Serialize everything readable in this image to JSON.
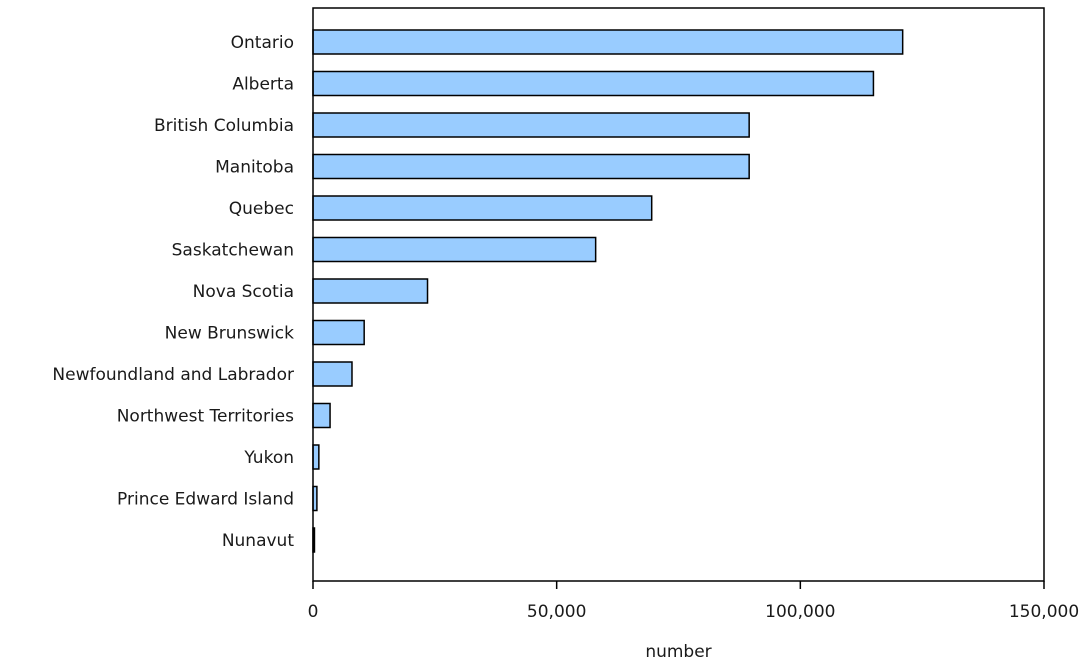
{
  "chart_data": {
    "type": "bar",
    "orientation": "horizontal",
    "categories": [
      "Ontario",
      "Alberta",
      "British Columbia",
      "Manitoba",
      "Quebec",
      "Saskatchewan",
      "Nova Scotia",
      "New Brunswick",
      "Newfoundland and Labrador",
      "Northwest Territories",
      "Yukon",
      "Prince Edward Island",
      "Nunavut"
    ],
    "values": [
      121000,
      115000,
      89500,
      89500,
      69500,
      58000,
      23500,
      10500,
      8000,
      3500,
      1200,
      800,
      300
    ],
    "title": "",
    "xlabel": "number",
    "ylabel": "",
    "xlim": [
      0,
      150000
    ],
    "xticks": [
      0,
      50000,
      100000,
      150000
    ],
    "xtick_labels": [
      "0",
      "50,000",
      "100,000",
      "150,000"
    ],
    "grid": false,
    "legend": "none",
    "bar_color": "#99ccff",
    "bar_outline": "#000000"
  }
}
